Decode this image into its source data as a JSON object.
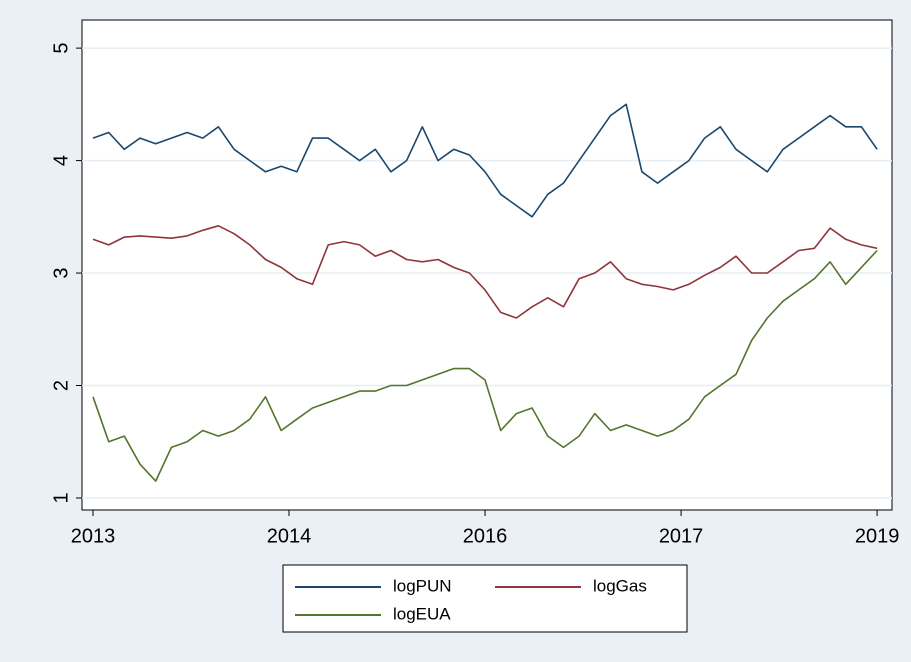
{
  "chart_data": {
    "type": "line",
    "x": [
      0,
      20,
      40,
      60,
      80,
      100,
      120,
      140,
      160,
      180,
      200,
      220,
      240,
      260,
      280,
      300,
      320,
      340,
      360,
      380,
      400,
      420,
      440,
      460,
      480,
      500,
      520,
      540,
      560,
      580,
      600,
      620,
      640,
      660,
      680,
      700,
      720,
      740,
      760,
      780,
      800,
      820,
      840,
      860,
      880,
      900,
      920,
      940,
      960,
      980,
      1000
    ],
    "series": [
      {
        "name": "logPUN",
        "color": "#1a476f",
        "values": [
          4.2,
          4.25,
          4.1,
          4.2,
          4.15,
          4.2,
          4.25,
          4.2,
          4.3,
          4.1,
          4.0,
          3.9,
          3.95,
          3.9,
          4.2,
          4.2,
          4.1,
          4.0,
          4.1,
          3.9,
          4.0,
          4.3,
          4.0,
          4.1,
          4.05,
          3.9,
          3.7,
          3.6,
          3.5,
          3.7,
          3.8,
          4.0,
          4.2,
          4.4,
          4.5,
          3.9,
          3.8,
          3.9,
          4.0,
          4.2,
          4.3,
          4.1,
          4.0,
          3.9,
          4.1,
          4.2,
          4.3,
          4.4,
          4.3,
          4.3,
          4.1
        ]
      },
      {
        "name": "logGas",
        "color": "#90353b",
        "values": [
          3.3,
          3.25,
          3.32,
          3.33,
          3.32,
          3.31,
          3.33,
          3.38,
          3.42,
          3.35,
          3.25,
          3.12,
          3.05,
          2.95,
          2.9,
          3.25,
          3.28,
          3.25,
          3.15,
          3.2,
          3.12,
          3.1,
          3.12,
          3.05,
          3.0,
          2.85,
          2.65,
          2.6,
          2.7,
          2.78,
          2.7,
          2.95,
          3.0,
          3.1,
          2.95,
          2.9,
          2.88,
          2.85,
          2.9,
          2.98,
          3.05,
          3.15,
          3.0,
          3.0,
          3.1,
          3.2,
          3.22,
          3.4,
          3.3,
          3.25,
          3.22
        ]
      },
      {
        "name": "logEUA",
        "color": "#55752f",
        "values": [
          1.9,
          1.5,
          1.55,
          1.3,
          1.15,
          1.45,
          1.5,
          1.6,
          1.55,
          1.6,
          1.7,
          1.9,
          1.6,
          1.7,
          1.8,
          1.85,
          1.9,
          1.95,
          1.95,
          2.0,
          2.0,
          2.05,
          2.1,
          2.15,
          2.15,
          2.05,
          1.6,
          1.75,
          1.8,
          1.55,
          1.45,
          1.55,
          1.75,
          1.6,
          1.65,
          1.6,
          1.55,
          1.6,
          1.7,
          1.9,
          2.0,
          2.1,
          2.4,
          2.6,
          2.75,
          2.85,
          2.95,
          3.1,
          2.9,
          3.05,
          3.2
        ]
      }
    ],
    "xlim": [
      -14,
      1019
    ],
    "xticks": [
      {
        "value": 0,
        "label": "2013"
      },
      {
        "value": 250,
        "label": "2014"
      },
      {
        "value": 500,
        "label": "2016"
      },
      {
        "value": 750,
        "label": "2017"
      },
      {
        "value": 1000,
        "label": "2019"
      }
    ],
    "ylim": [
      0.893,
      5.25
    ],
    "yticks": [
      1,
      2,
      3,
      4,
      5
    ],
    "grid": true
  }
}
